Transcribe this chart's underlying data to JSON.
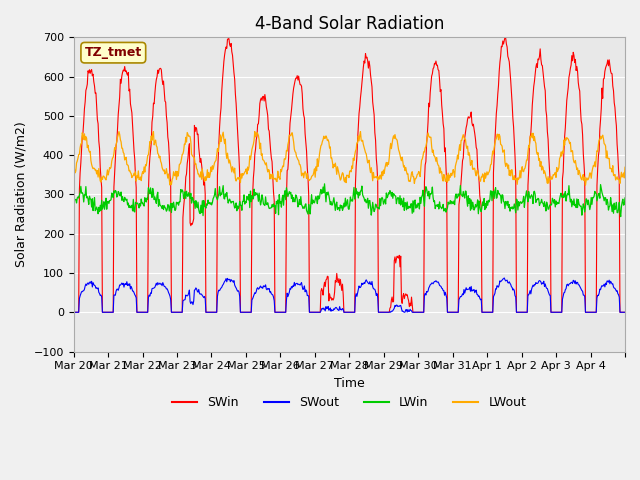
{
  "title": "4-Band Solar Radiation",
  "xlabel": "Time",
  "ylabel": "Solar Radiation (W/m2)",
  "annotation": "TZ_tmet",
  "ylim": [
    -100,
    700
  ],
  "legend": [
    "SWin",
    "SWout",
    "LWin",
    "LWout"
  ],
  "legend_colors": [
    "#ff0000",
    "#0000ff",
    "#00cc00",
    "#ffaa00"
  ],
  "line_colors": {
    "SWin": "#ff0000",
    "SWout": "#0000ff",
    "LWin": "#00cc00",
    "LWout": "#ffaa00"
  },
  "xtick_labels": [
    "Mar 20",
    "Mar 21",
    "Mar 22",
    "Mar 23",
    "Mar 24",
    "Mar 25",
    "Mar 26",
    "Mar 27",
    "Mar 28",
    "Mar 29",
    "Mar 30",
    "Mar 31",
    "Apr 1",
    "Apr 2",
    "Apr 3",
    "Apr 4",
    ""
  ],
  "background_color": "#e8e8e8",
  "title_fontsize": 12,
  "axis_bg_color": "#e8e8e8",
  "num_days": 16,
  "points_per_day": 48
}
